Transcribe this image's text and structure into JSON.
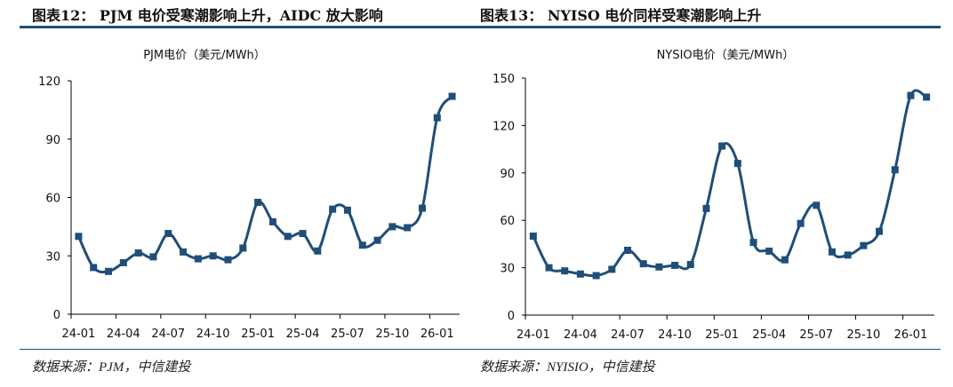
{
  "panels": [
    {
      "header": "图表12：  PJM 电价受寒潮影响上升，AIDC 放大影响",
      "source": "数据来源：PJM，中信建投"
    },
    {
      "header": "图表13：  NYISO 电价同样受寒潮影响上升",
      "source": "数据来源：NYISIO，中信建投"
    }
  ],
  "chart_data": [
    {
      "type": "line",
      "title": "PJM电价（美元/MWh）",
      "ylim": [
        0,
        120
      ],
      "yticks": [
        0,
        30,
        60,
        90,
        120
      ],
      "xticks": [
        "24-01",
        "24-04",
        "24-07",
        "24-10",
        "25-01",
        "25-04",
        "25-07",
        "25-10",
        "26-01"
      ],
      "x": [
        "24-01",
        "24-02",
        "24-03",
        "24-04",
        "24-05",
        "24-06",
        "24-07",
        "24-08",
        "24-09",
        "24-10",
        "24-11",
        "24-12",
        "25-01",
        "25-02",
        "25-03",
        "25-04",
        "25-05",
        "25-06",
        "25-07",
        "25-08",
        "25-09",
        "25-10",
        "25-11",
        "25-12",
        "26-01",
        "26-02"
      ],
      "values": [
        40,
        24,
        22,
        26.5,
        31.5,
        29.5,
        41.5,
        32,
        28.5,
        30,
        28,
        34,
        57.5,
        47.5,
        40,
        41.5,
        32.5,
        54,
        53.5,
        35.5,
        38,
        45,
        44.5,
        54.5,
        101,
        112
      ],
      "color": "#1f4e79",
      "marker": "square"
    },
    {
      "type": "line",
      "title": "NYSIO电价（美元/MWh）",
      "ylim": [
        0,
        150
      ],
      "yticks": [
        0,
        30,
        60,
        90,
        120,
        150
      ],
      "xticks": [
        "24-01",
        "24-04",
        "24-07",
        "24-10",
        "25-01",
        "25-04",
        "25-07",
        "25-10",
        "26-01"
      ],
      "x": [
        "24-01",
        "24-02",
        "24-03",
        "24-04",
        "24-05",
        "24-06",
        "24-07",
        "24-08",
        "24-09",
        "24-10",
        "24-11",
        "24-12",
        "25-01",
        "25-02",
        "25-03",
        "25-04",
        "25-05",
        "25-06",
        "25-07",
        "25-08",
        "25-09",
        "25-10",
        "25-11",
        "25-12",
        "26-01",
        "26-02"
      ],
      "values": [
        50,
        30,
        28,
        26,
        25,
        29,
        41,
        32.5,
        30.5,
        31.5,
        32,
        67.5,
        107,
        96,
        46,
        40.5,
        35,
        58,
        69.5,
        40,
        38,
        44,
        53,
        92,
        139,
        138
      ],
      "color": "#1f4e79",
      "marker": "square"
    }
  ]
}
